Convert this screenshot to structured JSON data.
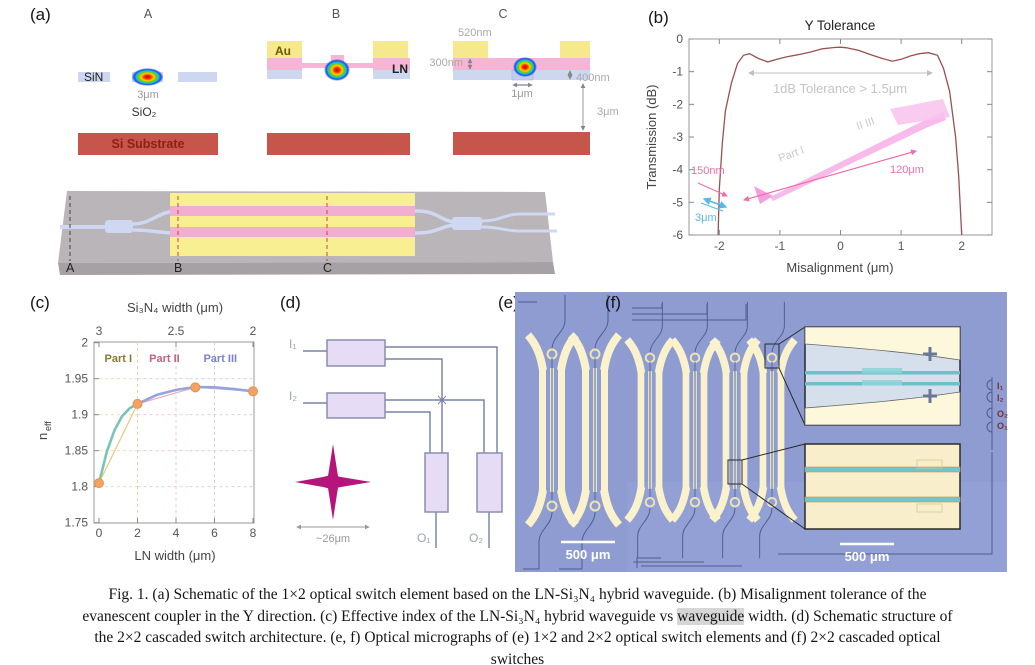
{
  "panel_a": {
    "label": "(a)",
    "section_a": {
      "title": "A",
      "sin": "SiN",
      "mode_width": "3μm",
      "sio2": "SiO₂",
      "substrate": "Si Substrate"
    },
    "section_b": {
      "title": "B",
      "au": "Au",
      "ln": "LN",
      "substrate_color": "#c6564b"
    },
    "section_c": {
      "title": "C",
      "au_thickness": "520nm",
      "ln_thickness": "300nm",
      "sin_thickness": "400nm",
      "wg_width": "1μm",
      "box_thickness": "3μm"
    },
    "schematic": {
      "a": "A",
      "b": "B",
      "c": "C"
    }
  },
  "panel_b": {
    "label": "(b)"
  },
  "panel_c": {
    "label": "(c)"
  },
  "panel_d": {
    "label": "(d)",
    "i1": "I₁",
    "i2": "I₂",
    "o1": "O₁",
    "o2": "O₂",
    "cross_dim": "~26μm"
  },
  "panel_e": {
    "label": "(e)",
    "scalebar": "500 μm"
  },
  "panel_f": {
    "label": "(f)",
    "scalebar": "500 μm",
    "ports": {
      "i1": "I₁",
      "i2": "I₂",
      "o2": "O₂",
      "o1": "O₁"
    }
  },
  "chart_data": [
    {
      "type": "line",
      "title": "Y Tolerance",
      "xlabel": "Misalignment (μm)",
      "ylabel": "Transmission (dB)",
      "xlim": [
        -2.5,
        2.5
      ],
      "ylim": [
        -6,
        0
      ],
      "xticks": [
        -2,
        -1,
        0,
        1,
        2
      ],
      "yticks": [
        0,
        -1,
        -2,
        -3,
        -4,
        -5,
        -6
      ],
      "line_color": "#9b5050",
      "x": [
        -2.02,
        -2.0,
        -1.95,
        -1.9,
        -1.8,
        -1.7,
        -1.6,
        -1.5,
        -1.35,
        -1.2,
        -1.05,
        -0.9,
        -0.7,
        -0.5,
        -0.3,
        -0.1,
        0,
        0.1,
        0.3,
        0.5,
        0.7,
        0.85,
        1.0,
        1.15,
        1.3,
        1.45,
        1.6,
        1.7,
        1.8,
        1.9,
        1.95,
        2.0
      ],
      "y": [
        -6,
        -4.6,
        -3.2,
        -2.2,
        -1.35,
        -0.75,
        -0.5,
        -0.45,
        -0.6,
        -0.7,
        -0.62,
        -0.55,
        -0.48,
        -0.4,
        -0.3,
        -0.26,
        -0.25,
        -0.27,
        -0.35,
        -0.48,
        -0.6,
        -0.68,
        -0.62,
        -0.52,
        -0.45,
        -0.42,
        -0.5,
        -0.9,
        -1.6,
        -3.0,
        -4.2,
        -6
      ],
      "annotation": "1dB Tolerance > 1.5μm",
      "inset": {
        "labels": {
          "tip": "150nm",
          "length": "120μm",
          "width": "3μm",
          "part1": "Part I",
          "part23": "II  III"
        }
      }
    },
    {
      "type": "line",
      "top_xlabel": "Si₃N₄ width (μm)",
      "xlabel": "LN width (μm)",
      "ylabel_main": "n",
      "ylabel_sub": "eff",
      "xlim": [
        -0.26,
        8.05
      ],
      "ylim": [
        1.75,
        2
      ],
      "xticks": [
        0,
        2,
        4,
        6,
        8
      ],
      "yticks": [
        2,
        1.95,
        1.9,
        1.85,
        1.8,
        1.75
      ],
      "top_ticks": [
        {
          "label": "3",
          "x": 0
        },
        {
          "label": "2.5",
          "x": 4
        },
        {
          "label": "2",
          "x": 8
        }
      ],
      "regions": [
        {
          "label": "Part I",
          "x": 1.0,
          "color": "#8a7a30"
        },
        {
          "label": "Part II",
          "x": 3.4,
          "color": "#c6607e"
        },
        {
          "label": "Part III",
          "x": 6.3,
          "color": "#7c82c4"
        }
      ],
      "series": [
        {
          "name": "part-I-curve",
          "color": "#79c4b4",
          "width": 2.6,
          "x": [
            0,
            0.4,
            0.8,
            1.2,
            1.6,
            2
          ],
          "y": [
            1.805,
            1.848,
            1.878,
            1.898,
            1.909,
            1.915
          ]
        },
        {
          "name": "chord-yellow",
          "color": "#e7c77d",
          "width": 1.2,
          "x": [
            0,
            2
          ],
          "y": [
            1.805,
            1.915
          ]
        },
        {
          "name": "chord-pink",
          "color": "#f2a8bc",
          "width": 1.2,
          "x": [
            2,
            5,
            8
          ],
          "y": [
            1.915,
            1.938,
            1.9325
          ]
        },
        {
          "name": "part-II-III-curve",
          "color": "#95a3de",
          "width": 2.6,
          "x": [
            2,
            3,
            4,
            5,
            6,
            7,
            8
          ],
          "y": [
            1.915,
            1.9275,
            1.9345,
            1.9385,
            1.938,
            1.9355,
            1.9325
          ]
        }
      ],
      "markers": {
        "x": [
          0,
          2,
          5,
          8
        ],
        "y": [
          1.805,
          1.915,
          1.938,
          1.9325
        ],
        "color": "#f4a264",
        "edge": "#e8914f"
      }
    }
  ],
  "caption": {
    "l1": "Fig. 1. (a) Schematic of the 1×2 optical switch element based on the LN-Si₃N₄ hybrid waveguide. (b) Misalignment tolerance of the",
    "l2a": "evanescent coupler in the Y direction. (c) Effective index of the LN-Si₃N₄ hybrid waveguide vs ",
    "l2b": "waveguide",
    "l2c": " width. (d) Schematic structure of",
    "l3": "the 2×2 cascaded switch architecture. (e, f) Optical micrographs of (e) 1×2 and 2×2 optical switch elements and (f) 2×2 cascaded optical",
    "l4": "switches"
  }
}
